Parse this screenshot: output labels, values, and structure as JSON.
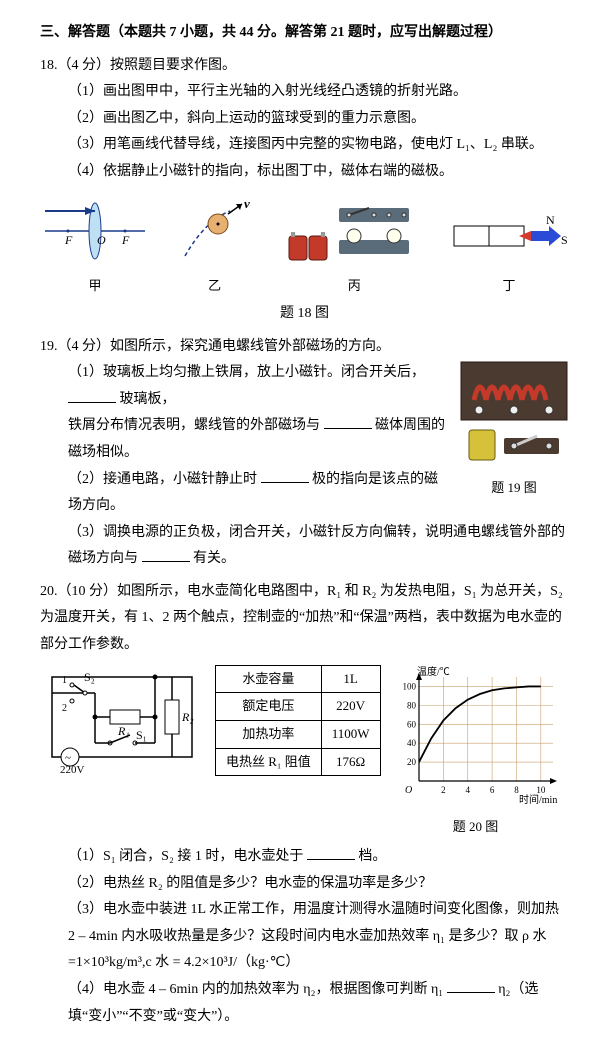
{
  "section": "三、解答题（本题共 7 小题，共 44 分。解答第 21 题时，应写出解题过程）",
  "q18": {
    "stem": "18.（4 分）按照题目要求作图。",
    "p1": "（1）画出图甲中，平行主光轴的入射光线经凸透镜的折射光路。",
    "p2": "（2）画出图乙中，斜向上运动的篮球受到的重力示意图。",
    "p3": "（3）用笔画线代替导线，连接图丙中完整的实物电路，使电灯 L₁、L₂ 串联。",
    "p4": "（4）依据静止小磁针的指向，标出图丁中，磁体右端的磁极。",
    "labels": {
      "a": "甲",
      "b": "乙",
      "c": "丙",
      "d": "丁"
    },
    "caption": "题 18 图",
    "fig": {
      "lens": {
        "F": "F",
        "O": "O",
        "lens_color": "#6fb7e8",
        "line_color": "#1a3a8a"
      },
      "ball": {
        "v": "v",
        "ball_color": "#d78a3a",
        "dash_color": "#1a3a8a"
      },
      "circuit": {
        "battery_color": "#c43a2a",
        "base_color": "#5a6b7a"
      },
      "magnet": {
        "N": "N",
        "S": "S",
        "N_color": "#2a4bd6",
        "S_color": "#d63a2a"
      }
    }
  },
  "q19": {
    "stem": "19.（4 分）如图所示，探究通电螺线管外部磁场的方向。",
    "p1a": "（1）玻璃板上均匀撒上铁屑，放上小磁针。闭合开关后，",
    "p1b": "玻璃板，",
    "p1c": "铁屑分布情况表明，螺线管的外部磁场与",
    "p1d": "磁体周围的磁场相似。",
    "p2a": "（2）接通电路，小磁针静止时",
    "p2b": "极的指向是该点的磁场方向。",
    "p3": "（3）调换电源的正负极，闭合开关，小磁针反方向偏转，说明通电螺线管外部的磁场方向与",
    "p3b": "有关。",
    "caption": "题 19 图",
    "fig": {
      "coil_color": "#c43a2a",
      "board_color": "#5a3a2a",
      "battery_color": "#d6c23a"
    }
  },
  "q20": {
    "stem": "20.（10 分）如图所示，电水壶简化电路图中，R₁ 和 R₂ 为发热电阻，S₁ 为总开关，S₂ 为温度开关，有 1、2 两个触点，控制壶的“加热”和“保温”两档，表中数据为电水壶的部分工作参数。",
    "circuit": {
      "S2": "S₂",
      "S1": "S₁",
      "R1": "R₁",
      "R2": "R₂",
      "V": "220V",
      "n1": "1",
      "n2": "2"
    },
    "table": {
      "rows": [
        [
          "水壶容量",
          "1L"
        ],
        [
          "额定电压",
          "220V"
        ],
        [
          "加热功率",
          "1100W"
        ],
        [
          "电热丝 R₁ 阻值",
          "176Ω"
        ]
      ]
    },
    "chart": {
      "ylabel": "温度/℃",
      "xlabel": "时间/min",
      "xticks": [
        0,
        2,
        4,
        6,
        8,
        10
      ],
      "yticks": [
        0,
        20,
        40,
        60,
        80,
        100
      ],
      "xlim": [
        0,
        11
      ],
      "ylim": [
        0,
        110
      ],
      "points": [
        [
          0,
          20
        ],
        [
          1,
          45
        ],
        [
          2,
          64
        ],
        [
          3,
          77
        ],
        [
          4,
          86
        ],
        [
          5,
          92
        ],
        [
          6,
          96
        ],
        [
          7,
          98
        ],
        [
          8,
          99
        ],
        [
          9,
          100
        ],
        [
          10,
          100
        ]
      ],
      "line_color": "#000",
      "grid_color": "#c9a06a",
      "axis_color": "#000",
      "bg": "#fff"
    },
    "caption": "题 20 图",
    "p1a": "（1）S₁ 闭合，S₂ 接 1 时，电水壶处于",
    "p1b": "档。",
    "p2": "（2）电热丝 R₂ 的阻值是多少？电水壶的保温功率是多少？",
    "p3": "（3）电水壶中装进 1L 水正常工作，用温度计测得水温随时间变化图像，则加热 2 – 4min 内水吸收热量是多少？这段时间内电水壶加热效率 η₁ 是多少？取 ρ 水 =1×10³kg/m³,c 水 = 4.2×10³J/（kg·℃）",
    "p4a": "（4）电水壶 4 – 6min 内的加热效率为 η₂，根据图像可判断 η₁",
    "p4b": "η₂（选填“变小”“不变”或“变大”）。"
  }
}
